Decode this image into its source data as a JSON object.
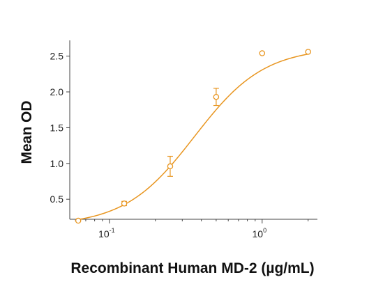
{
  "chart_data": {
    "type": "scatter",
    "xlabel": "Recombinant Human MD-2 (µg/mL)",
    "ylabel": "Mean OD",
    "x_scale": "log",
    "xlim": [
      0.055,
      2.3
    ],
    "ylim": [
      0.22,
      2.72
    ],
    "y_ticks": [
      "0.5",
      "1.0",
      "1.5",
      "2.0",
      "2.5"
    ],
    "x_ticks": [
      {
        "value": 0.1,
        "base": "10",
        "exp": "-1"
      },
      {
        "value": 1,
        "base": "10",
        "exp": "0"
      }
    ],
    "color": "#e8951f",
    "grid": false,
    "series": [
      {
        "points": [
          {
            "x": 0.0625,
            "y": 0.2,
            "err": 0.0
          },
          {
            "x": 0.125,
            "y": 0.44,
            "err": 0.03
          },
          {
            "x": 0.25,
            "y": 0.96,
            "err": 0.14
          },
          {
            "x": 0.5,
            "y": 1.93,
            "err": 0.12
          },
          {
            "x": 1.0,
            "y": 2.54,
            "err": 0.0
          },
          {
            "x": 2.0,
            "y": 2.56,
            "err": 0.0
          }
        ],
        "fit": {
          "model": "4PL",
          "bottom": 0.13,
          "top": 2.62,
          "ec50": 0.36,
          "hill": 1.9
        }
      }
    ]
  }
}
